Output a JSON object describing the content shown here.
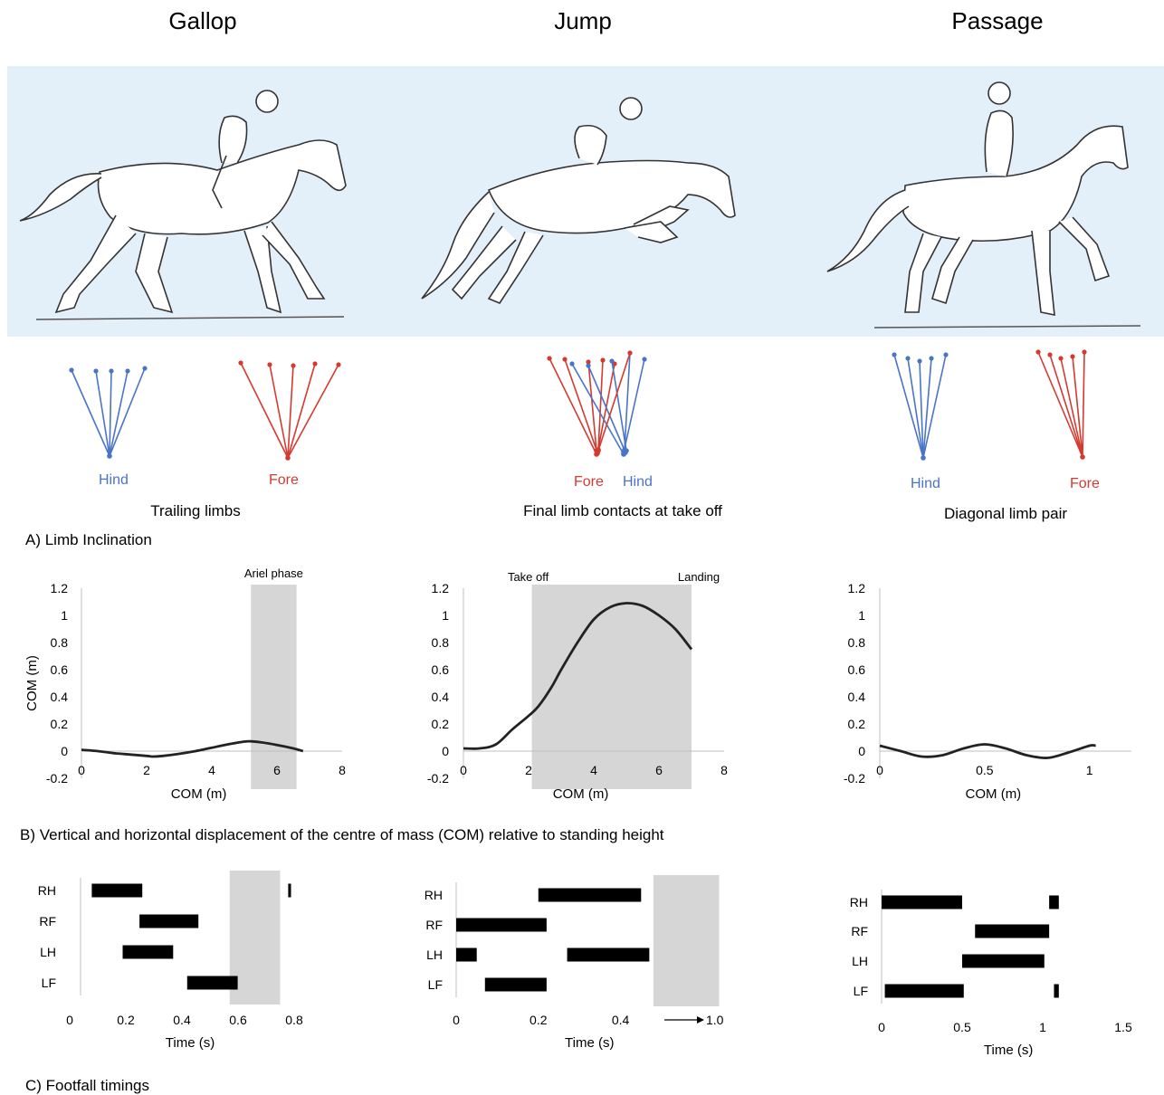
{
  "titles": [
    "Gallop",
    "Jump",
    "Passage"
  ],
  "limb_diagrams": {
    "gallop": {
      "hind": "Hind",
      "fore": "Fore",
      "caption": "Trailing limbs"
    },
    "jump": {
      "fore": "Fore",
      "hind": "Hind",
      "caption": "Final limb contacts at take off"
    },
    "passage": {
      "hind": "Hind",
      "fore": "Fore",
      "caption": "Diagonal limb pair"
    },
    "colors": {
      "hind": "#4a74c4",
      "fore": "#d43a30",
      "background": "#e3f0fa"
    }
  },
  "section_labels": {
    "a": "A) Limb Inclination",
    "b": "B) Vertical and horizontal displacement of the centre of mass (COM) relative to standing height",
    "c": "C) Footfall timings"
  },
  "chart_data": [
    {
      "type": "line",
      "panel": "gallop-com",
      "xlabel": "COM (m)",
      "ylabel": "COM (m)",
      "xlim": [
        0,
        8
      ],
      "ylim": [
        -0.2,
        1.2
      ],
      "xticks": [
        "0",
        "2",
        "4",
        "6",
        "8"
      ],
      "yticks": [
        "-0.2",
        "0",
        "0.2",
        "0.4",
        "0.6",
        "0.8",
        "1",
        "1.2"
      ],
      "shade": {
        "x": [
          5.2,
          6.6
        ],
        "label": "Ariel phase"
      },
      "x": [
        0,
        0.5,
        1,
        1.5,
        2,
        2.2,
        2.5,
        3,
        3.5,
        4,
        4.5,
        5,
        5.2,
        5.5,
        6,
        6.5,
        6.8
      ],
      "y": [
        0.01,
        0.0,
        -0.015,
        -0.025,
        -0.035,
        -0.04,
        -0.035,
        -0.02,
        0.0,
        0.025,
        0.05,
        0.07,
        0.072,
        0.065,
        0.045,
        0.02,
        0.0
      ]
    },
    {
      "type": "line",
      "panel": "jump-com",
      "xlabel": "COM (m)",
      "ylabel": "",
      "xlim": [
        0,
        8
      ],
      "ylim": [
        -0.2,
        1.2
      ],
      "xticks": [
        "0",
        "2",
        "4",
        "6",
        "8"
      ],
      "yticks": [
        "-0.2",
        "0",
        "0.2",
        "0.4",
        "0.6",
        "0.8",
        "1",
        "1.2"
      ],
      "shade": {
        "x": [
          2.1,
          7.0
        ],
        "left_label": "Take off",
        "right_label": "Landing"
      },
      "x": [
        0,
        0.5,
        1,
        1.5,
        2,
        2.3,
        2.7,
        3,
        3.5,
        4,
        4.5,
        5,
        5.5,
        6,
        6.5,
        7.0
      ],
      "y": [
        0.02,
        0.02,
        0.05,
        0.16,
        0.26,
        0.33,
        0.47,
        0.6,
        0.8,
        0.97,
        1.06,
        1.09,
        1.07,
        1.0,
        0.9,
        0.75
      ]
    },
    {
      "type": "line",
      "panel": "passage-com",
      "xlabel": "COM (m)",
      "ylabel": "",
      "xlim": [
        0,
        1.2
      ],
      "ylim": [
        -0.2,
        1.2
      ],
      "xticks": [
        "0",
        "0.5",
        "1"
      ],
      "yticks": [
        "-0.2",
        "0",
        "0.2",
        "0.4",
        "0.6",
        "0.8",
        "1",
        "1.2"
      ],
      "x": [
        0,
        0.1,
        0.2,
        0.3,
        0.4,
        0.5,
        0.6,
        0.7,
        0.8,
        0.9,
        1.0,
        1.03
      ],
      "y": [
        0.04,
        0.0,
        -0.04,
        -0.03,
        0.02,
        0.05,
        0.02,
        -0.03,
        -0.05,
        -0.01,
        0.04,
        0.04
      ]
    },
    {
      "type": "bar",
      "panel": "gallop-footfall",
      "xlabel": "Time (s)",
      "xlim": [
        0,
        0.8
      ],
      "xticks": [
        "0",
        "0.2",
        "0.4",
        "0.6",
        "0.8"
      ],
      "categories": [
        "RH",
        "RF",
        "LH",
        "LF"
      ],
      "shade": {
        "x": [
          0.57,
          0.75
        ]
      },
      "stances": {
        "RH": [
          [
            0.04,
            0.22
          ],
          [
            0.74,
            0.75
          ]
        ],
        "RF": [
          [
            0.21,
            0.42
          ]
        ],
        "LH": [
          [
            0.15,
            0.33
          ]
        ],
        "LF": [
          [
            0.38,
            0.56
          ]
        ]
      }
    },
    {
      "type": "bar",
      "panel": "jump-footfall",
      "xlabel": "Time (s)",
      "xlim": [
        0,
        0.63
      ],
      "xticks": [
        "0",
        "0.2",
        "0.4"
      ],
      "break_label": "1.0",
      "categories": [
        "RH",
        "RF",
        "LH",
        "LF"
      ],
      "shade": {
        "x": [
          0.48,
          0.64
        ]
      },
      "stances": {
        "RH": [
          [
            0.2,
            0.45
          ]
        ],
        "RF": [
          [
            0.0,
            0.22
          ]
        ],
        "LH": [
          [
            0.0,
            0.05
          ],
          [
            0.27,
            0.47
          ]
        ],
        "LF": [
          [
            0.07,
            0.22
          ]
        ]
      }
    },
    {
      "type": "bar",
      "panel": "passage-footfall",
      "xlabel": "Time (s)",
      "xlim": [
        0,
        1.5
      ],
      "xticks": [
        "0",
        "0.5",
        "1",
        "1.5"
      ],
      "categories": [
        "RH",
        "RF",
        "LH",
        "LF"
      ],
      "stances": {
        "RH": [
          [
            0.0,
            0.5
          ],
          [
            1.04,
            1.1
          ]
        ],
        "RF": [
          [
            0.58,
            1.04
          ]
        ],
        "LH": [
          [
            0.5,
            1.01
          ]
        ],
        "LF": [
          [
            0.02,
            0.51
          ],
          [
            1.07,
            1.1
          ]
        ]
      }
    }
  ]
}
